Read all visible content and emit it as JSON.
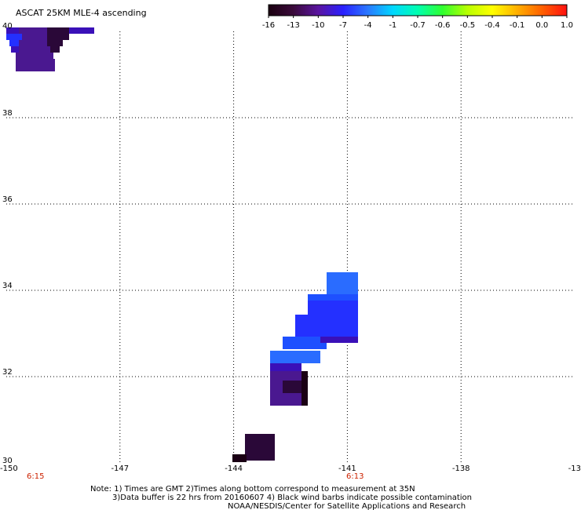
{
  "title": "ASCAT 25KM MLE-4 ascending",
  "colorbar": {
    "labels": [
      "-16",
      "-13",
      "-10",
      "-7",
      "-4",
      "-1",
      "-0.7",
      "-0.6",
      "-0.5",
      "-0.4",
      "-0.1",
      "0.0",
      "1.0"
    ],
    "colors": [
      "#1a0010",
      "#3a0a3a",
      "#5a14a0",
      "#2a20ff",
      "#2a78ff",
      "#00d8ff",
      "#00ffb0",
      "#30ff30",
      "#b8ff00",
      "#ffff00",
      "#ffb000",
      "#ff6000",
      "#ff1010"
    ]
  },
  "axes": {
    "x_ticks": [
      "-150",
      "-147",
      "-144",
      "-141",
      "-138",
      "-13"
    ],
    "y_ticks": [
      "40",
      "38",
      "36",
      "34",
      "32",
      "30"
    ],
    "lon_range": [
      -150,
      -135
    ],
    "lat_range": [
      30,
      40
    ]
  },
  "times": {
    "left": "6:15",
    "right": "6:13"
  },
  "notes": {
    "line1": "Note: 1) Times are GMT 2)Times along bottom correspond to measurement at 35N",
    "line2": "3)Data buffer is 22 hrs from 20160607 4) Black wind barbs indicate possible contamination",
    "line3": "NOAA/NESDIS/Center for Satellite Applications and Research"
  },
  "swath_colors": {
    "dark": "#1a0014",
    "deep": "#2a0838",
    "purple": "#4a1890",
    "violet": "#3a10b8",
    "blue": "#2430ff",
    "mid_blue": "#1e50ff",
    "light_blue": "#2a6cff"
  }
}
